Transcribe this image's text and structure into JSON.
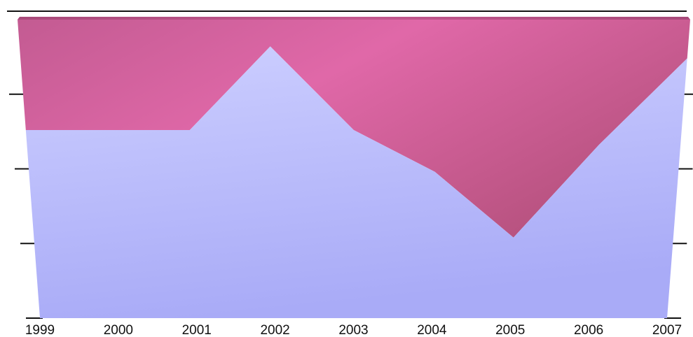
{
  "chart_data": {
    "type": "area",
    "stacked": true,
    "normalized_percent": true,
    "categories": [
      "1999",
      "2000",
      "2001",
      "2002",
      "2003",
      "2004",
      "2005",
      "2006",
      "2007"
    ],
    "series": [
      {
        "values": [
          63,
          63,
          63,
          91,
          63,
          49,
          27,
          58,
          87
        ],
        "color": "#b8bafc"
      },
      {
        "values": [
          37,
          37,
          37,
          9,
          37,
          51,
          73,
          42,
          13
        ],
        "color": "#d35f9c"
      }
    ],
    "ylim": [
      0,
      100
    ],
    "y_ticks": [
      0,
      25,
      50,
      75,
      100
    ],
    "grid": false,
    "legend": "none",
    "style": "3d-wall"
  }
}
